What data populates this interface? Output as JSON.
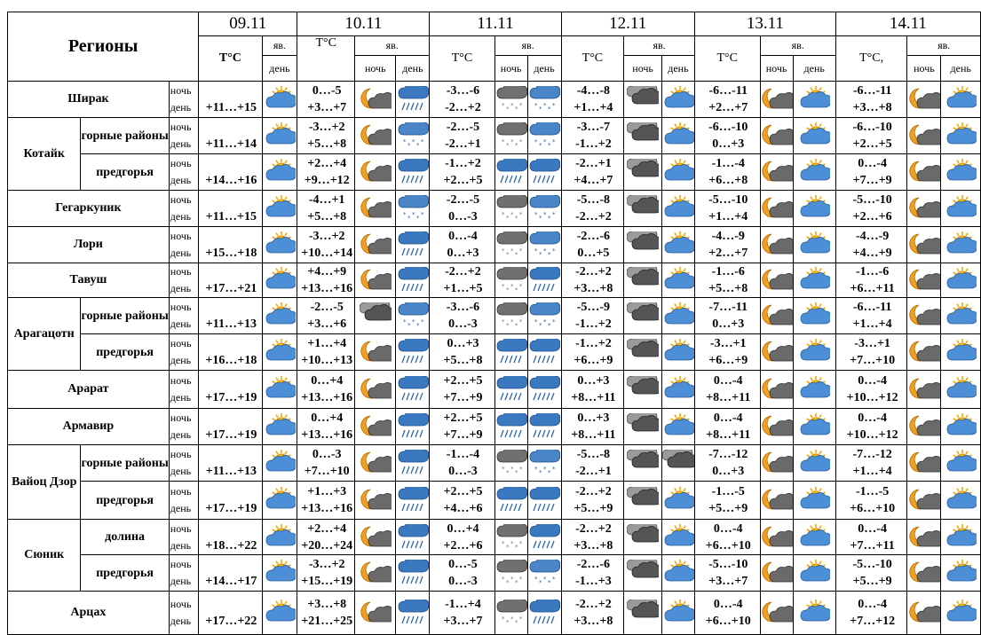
{
  "header": {
    "regions_label": "Регионы",
    "temp_label": "T°C",
    "temp_label_b": "T°C,",
    "phenomena_label": "яв.",
    "night_label": "ночь",
    "day_label": "день",
    "dates": [
      "09.11",
      "10.11",
      "11.11",
      "12.11",
      "13.11",
      "14.11"
    ]
  },
  "icon_legend": {
    "sun-cloud": "sun with cloud",
    "moon-cloud": "moon with cloud",
    "rain": "cloud with rain",
    "snow": "cloud with snow",
    "snow-rain": "cloud with snow and rain",
    "rain-snow": "cloud with rain and snow",
    "overcast": "dark clouds",
    "moon-sun": "moon and sun",
    "sun-rain": "sun cloud rain"
  },
  "rows": [
    {
      "region": "Ширак",
      "sub": "",
      "d0": {
        "night": "",
        "day": "+11…+15",
        "icon": "sun-cloud"
      },
      "d1": {
        "night": "0…-5",
        "day": "+3…+7",
        "icons": [
          "moon-cloud",
          "rain"
        ]
      },
      "d2": {
        "night": "-3…-6",
        "day": "-2…+2",
        "icons": [
          "snow",
          "snow-rain"
        ]
      },
      "d3": {
        "night": "-4…-8",
        "day": "+1…+4",
        "icons": [
          "overcast",
          "sun-cloud"
        ]
      },
      "d4": {
        "night": "-6…-11",
        "day": "+2…+7",
        "icons": [
          "moon-cloud",
          "sun-cloud"
        ]
      },
      "d5": {
        "night": "-6…-11",
        "day": "+3…+8",
        "icons": [
          "moon-cloud",
          "sun-cloud"
        ]
      }
    },
    {
      "region": "Котайк",
      "sub": "горные районы",
      "d0": {
        "night": "",
        "day": "+11…+14",
        "icon": "sun-cloud"
      },
      "d1": {
        "night": "-3…+2",
        "day": "+5…+8",
        "icons": [
          "moon-cloud",
          "snow-rain"
        ]
      },
      "d2": {
        "night": "-2…-5",
        "day": "-2…+1",
        "icons": [
          "snow",
          "snow-rain"
        ]
      },
      "d3": {
        "night": "-3…-7",
        "day": "-1…+2",
        "icons": [
          "overcast",
          "sun-cloud"
        ]
      },
      "d4": {
        "night": "-6…-10",
        "day": "0…+3",
        "icons": [
          "moon-cloud",
          "sun-cloud"
        ]
      },
      "d5": {
        "night": "-6…-10",
        "day": "+2…+5",
        "icons": [
          "moon-cloud",
          "sun-cloud"
        ]
      }
    },
    {
      "region": "",
      "sub": "предгорья",
      "d0": {
        "night": "",
        "day": "+14…+16",
        "icon": "sun-cloud"
      },
      "d1": {
        "night": "+2…+4",
        "day": "+9…+12",
        "icons": [
          "moon-cloud",
          "rain"
        ]
      },
      "d2": {
        "night": "-1…+2",
        "day": "+2…+5",
        "icons": [
          "rain",
          "rain"
        ]
      },
      "d3": {
        "night": "-2…+1",
        "day": "+4…+7",
        "icons": [
          "overcast",
          "sun-cloud"
        ]
      },
      "d4": {
        "night": "-1…-4",
        "day": "+6…+8",
        "icons": [
          "moon-cloud",
          "sun-cloud"
        ]
      },
      "d5": {
        "night": "0…-4",
        "day": "+7…+9",
        "icons": [
          "moon-cloud",
          "sun-cloud"
        ]
      }
    },
    {
      "region": "Гегаркуник",
      "sub": "",
      "d0": {
        "night": "",
        "day": "+11…+15",
        "icon": "sun-cloud"
      },
      "d1": {
        "night": "-4…+1",
        "day": "+5…+8",
        "icons": [
          "moon-cloud",
          "snow-rain"
        ]
      },
      "d2": {
        "night": "-2…-5",
        "day": "0…-3",
        "icons": [
          "snow",
          "snow-rain"
        ]
      },
      "d3": {
        "night": "-5…-8",
        "day": "-2…+2",
        "icons": [
          "overcast",
          "sun-cloud"
        ]
      },
      "d4": {
        "night": "-5…-10",
        "day": "+1…+4",
        "icons": [
          "moon-cloud",
          "sun-cloud"
        ]
      },
      "d5": {
        "night": "-5…-10",
        "day": "+2…+6",
        "icons": [
          "moon-cloud",
          "sun-cloud"
        ]
      }
    },
    {
      "region": "Лори",
      "sub": "",
      "d0": {
        "night": "",
        "day": "+15…+18",
        "icon": "sun-cloud"
      },
      "d1": {
        "night": "-3…+2",
        "day": "+10…+14",
        "icons": [
          "moon-cloud",
          "rain"
        ]
      },
      "d2": {
        "night": "0…-4",
        "day": "0…+3",
        "icons": [
          "snow",
          "snow-rain"
        ]
      },
      "d3": {
        "night": "-2…-6",
        "day": "0…+5",
        "icons": [
          "overcast",
          "sun-cloud"
        ]
      },
      "d4": {
        "night": "-4…-9",
        "day": "+2…+7",
        "icons": [
          "moon-cloud",
          "sun-cloud"
        ]
      },
      "d5": {
        "night": "-4…-9",
        "day": "+4…+9",
        "icons": [
          "moon-cloud",
          "sun-cloud"
        ]
      }
    },
    {
      "region": "Тавуш",
      "sub": "",
      "d0": {
        "night": "",
        "day": "+17…+21",
        "icon": "sun-cloud"
      },
      "d1": {
        "night": "+4…+9",
        "day": "+13…+16",
        "icons": [
          "moon-cloud",
          "rain"
        ]
      },
      "d2": {
        "night": "-2…+2",
        "day": "+1…+5",
        "icons": [
          "snow",
          "rain"
        ]
      },
      "d3": {
        "night": "-2…+2",
        "day": "+3…+8",
        "icons": [
          "overcast",
          "sun-cloud"
        ]
      },
      "d4": {
        "night": "-1…-6",
        "day": "+5…+8",
        "icons": [
          "moon-cloud",
          "sun-cloud"
        ]
      },
      "d5": {
        "night": "-1…-6",
        "day": "+6…+11",
        "icons": [
          "moon-cloud",
          "sun-cloud"
        ]
      }
    },
    {
      "region": "Арагацотн",
      "sub": "горные районы",
      "d0": {
        "night": "",
        "day": "+11…+13",
        "icon": "sun-cloud"
      },
      "d1": {
        "night": "-2…-5",
        "day": "+3…+6",
        "icons": [
          "overcast",
          "snow-rain"
        ]
      },
      "d2": {
        "night": "-3…-6",
        "day": "0…-3",
        "icons": [
          "snow",
          "snow-rain"
        ]
      },
      "d3": {
        "night": "-5…-9",
        "day": "-1…+2",
        "icons": [
          "overcast",
          "sun-cloud"
        ]
      },
      "d4": {
        "night": "-7…-11",
        "day": "0…+3",
        "icons": [
          "moon-cloud",
          "sun-cloud"
        ]
      },
      "d5": {
        "night": "-6…-11",
        "day": "+1…+4",
        "icons": [
          "moon-cloud",
          "sun-cloud"
        ]
      }
    },
    {
      "region": "",
      "sub": "предгорья",
      "d0": {
        "night": "",
        "day": "+16…+18",
        "icon": "sun-cloud"
      },
      "d1": {
        "night": "+1…+4",
        "day": "+10…+13",
        "icons": [
          "moon-cloud",
          "rain"
        ]
      },
      "d2": {
        "night": "0…+3",
        "day": "+5…+8",
        "icons": [
          "rain",
          "rain"
        ]
      },
      "d3": {
        "night": "-1…+2",
        "day": "+6…+9",
        "icons": [
          "overcast",
          "sun-cloud"
        ]
      },
      "d4": {
        "night": "-3…+1",
        "day": "+6…+9",
        "icons": [
          "moon-cloud",
          "sun-cloud"
        ]
      },
      "d5": {
        "night": "-3…+1",
        "day": "+7…+10",
        "icons": [
          "moon-cloud",
          "sun-cloud"
        ]
      }
    },
    {
      "region": "Арарат",
      "sub": "",
      "d0": {
        "night": "",
        "day": "+17…+19",
        "icon": "sun-cloud"
      },
      "d1": {
        "night": "0…+4",
        "day": "+13…+16",
        "icons": [
          "moon-cloud",
          "rain"
        ]
      },
      "d2": {
        "night": "+2…+5",
        "day": "+7…+9",
        "icons": [
          "rain",
          "rain"
        ]
      },
      "d3": {
        "night": "0…+3",
        "day": "+8…+11",
        "icons": [
          "overcast",
          "sun-cloud"
        ]
      },
      "d4": {
        "night": "0…-4",
        "day": "+8…+11",
        "icons": [
          "moon-cloud",
          "sun-cloud"
        ]
      },
      "d5": {
        "night": "0…-4",
        "day": "+10…+12",
        "icons": [
          "moon-cloud",
          "sun-cloud"
        ]
      }
    },
    {
      "region": "Армавир",
      "sub": "",
      "d0": {
        "night": "",
        "day": "+17…+19",
        "icon": "sun-cloud"
      },
      "d1": {
        "night": "0…+4",
        "day": "+13…+16",
        "icons": [
          "moon-cloud",
          "rain"
        ]
      },
      "d2": {
        "night": "+2…+5",
        "day": "+7…+9",
        "icons": [
          "rain",
          "rain"
        ]
      },
      "d3": {
        "night": "0…+3",
        "day": "+8…+11",
        "icons": [
          "overcast",
          "sun-cloud"
        ]
      },
      "d4": {
        "night": "0…-4",
        "day": "+8…+11",
        "icons": [
          "moon-cloud",
          "sun-cloud"
        ]
      },
      "d5": {
        "night": "0…-4",
        "day": "+10…+12",
        "icons": [
          "moon-cloud",
          "sun-cloud"
        ]
      }
    },
    {
      "region": "Вайоц Дзор",
      "sub": "горные районы",
      "d0": {
        "night": "",
        "day": "+11…+13",
        "icon": "sun-cloud"
      },
      "d1": {
        "night": "0…-3",
        "day": "+7…+10",
        "icons": [
          "moon-cloud",
          "rain"
        ]
      },
      "d2": {
        "night": "-1…-4",
        "day": "0…-3",
        "icons": [
          "snow",
          "snow-rain"
        ]
      },
      "d3": {
        "night": "-5…-8",
        "day": "-2…+1",
        "icons": [
          "overcast",
          "overcast"
        ]
      },
      "d4": {
        "night": "-7…-12",
        "day": "0…+3",
        "icons": [
          "moon-cloud",
          "sun-cloud"
        ]
      },
      "d5": {
        "night": "-7…-12",
        "day": "+1…+4",
        "icons": [
          "moon-cloud",
          "sun-cloud"
        ]
      }
    },
    {
      "region": "",
      "sub": "предгорья",
      "d0": {
        "night": "",
        "day": "+17…+19",
        "icon": "sun-cloud"
      },
      "d1": {
        "night": "+1…+3",
        "day": "+13…+16",
        "icons": [
          "moon-cloud",
          "rain"
        ]
      },
      "d2": {
        "night": "+2…+5",
        "day": "+4…+6",
        "icons": [
          "rain",
          "rain"
        ]
      },
      "d3": {
        "night": "-2…+2",
        "day": "+5…+9",
        "icons": [
          "overcast",
          "sun-cloud"
        ]
      },
      "d4": {
        "night": "-1…-5",
        "day": "+5…+9",
        "icons": [
          "moon-cloud",
          "sun-cloud"
        ]
      },
      "d5": {
        "night": "-1…-5",
        "day": "+6…+10",
        "icons": [
          "moon-cloud",
          "sun-cloud"
        ]
      }
    },
    {
      "region": "Сюник",
      "sub": "долина",
      "d0": {
        "night": "",
        "day": "+18…+22",
        "icon": "sun-cloud"
      },
      "d1": {
        "night": "+2…+4",
        "day": "+20…+24",
        "icons": [
          "moon-cloud",
          "rain"
        ]
      },
      "d2": {
        "night": "0…+4",
        "day": "+2…+6",
        "icons": [
          "snow",
          "rain"
        ]
      },
      "d3": {
        "night": "-2…+2",
        "day": "+3…+8",
        "icons": [
          "overcast",
          "sun-cloud"
        ]
      },
      "d4": {
        "night": "0…-4",
        "day": "+6…+10",
        "icons": [
          "moon-cloud",
          "sun-cloud"
        ]
      },
      "d5": {
        "night": "0…-4",
        "day": "+7…+11",
        "icons": [
          "moon-cloud",
          "sun-cloud"
        ]
      }
    },
    {
      "region": "",
      "sub": "предгорья",
      "d0": {
        "night": "",
        "day": "+14…+17",
        "icon": "sun-cloud"
      },
      "d1": {
        "night": "-3…+2",
        "day": "+15…+19",
        "icons": [
          "moon-cloud",
          "rain"
        ]
      },
      "d2": {
        "night": "0…-5",
        "day": "0…-3",
        "icons": [
          "snow",
          "snow-rain"
        ]
      },
      "d3": {
        "night": "-2…-6",
        "day": "-1…+3",
        "icons": [
          "overcast",
          "sun-cloud"
        ]
      },
      "d4": {
        "night": "-5…-10",
        "day": "+3…+7",
        "icons": [
          "moon-cloud",
          "sun-cloud"
        ]
      },
      "d5": {
        "night": "-5…-10",
        "day": "+5…+9",
        "icons": [
          "moon-cloud",
          "sun-cloud"
        ]
      }
    },
    {
      "region": "Арцах",
      "sub": "",
      "d0": {
        "night": "",
        "day": "+17…+22",
        "icon": "sun-cloud"
      },
      "d1": {
        "night": "+3…+8",
        "day": "+21…+25",
        "icons": [
          "moon-cloud",
          "rain"
        ]
      },
      "d2": {
        "night": "-1…+4",
        "day": "+3…+7",
        "icons": [
          "snow",
          "rain"
        ]
      },
      "d3": {
        "night": "-2…+2",
        "day": "+3…+8",
        "icons": [
          "overcast",
          "sun-cloud"
        ]
      },
      "d4": {
        "night": "0…-4",
        "day": "+6…+10",
        "icons": [
          "moon-cloud",
          "sun-cloud"
        ]
      },
      "d5": {
        "night": "0…-4",
        "day": "+7…+12",
        "icons": [
          "moon-cloud",
          "sun-cloud"
        ]
      }
    }
  ],
  "colors": {
    "border": "#000000",
    "sun": "#f6a800",
    "cloud": "#3a78c0",
    "moon": "#e48a1a",
    "overcast": "#555555"
  }
}
